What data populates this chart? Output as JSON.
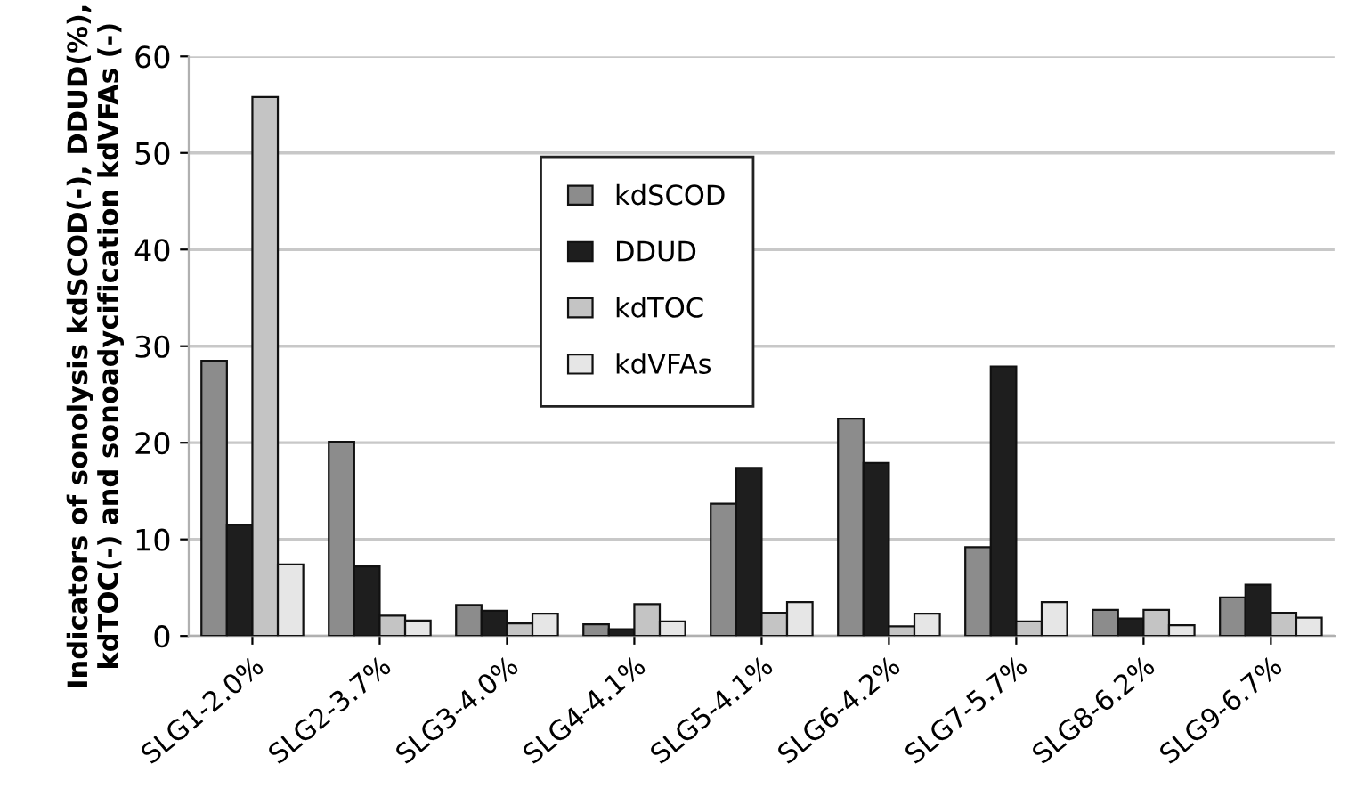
{
  "chart_data": {
    "type": "bar",
    "ylabel": "Indicators of sonolysis kdSCOD(-), DDUD(%),\nkdTOC(-) and sonoadycification kdVFAs (-)",
    "categories": [
      "SLG1-2.0%",
      "SLG2-3.7%",
      "SLG3-4.0%",
      "SLG4-4.1%",
      "SLG5-4.1%",
      "SLG6-4.2%",
      "SLG7-5.7%",
      "SLG8-6.2%",
      "SLG9-6.7%"
    ],
    "series": [
      {
        "name": "kdSCOD",
        "color": "#8c8c8c",
        "values": [
          28.5,
          20.1,
          3.2,
          1.2,
          13.7,
          22.5,
          9.2,
          2.7,
          4.0
        ]
      },
      {
        "name": "DDUD",
        "color": "#1e1e1e",
        "values": [
          11.5,
          7.2,
          2.6,
          0.7,
          17.4,
          17.9,
          27.9,
          1.8,
          5.3
        ]
      },
      {
        "name": "kdTOC",
        "color": "#c4c4c4",
        "values": [
          55.8,
          2.1,
          1.3,
          3.3,
          2.4,
          1.0,
          1.5,
          2.7,
          2.4
        ]
      },
      {
        "name": "kdVFAs",
        "color": "#e6e6e6",
        "values": [
          7.4,
          1.6,
          2.3,
          1.5,
          3.5,
          2.3,
          3.5,
          1.1,
          1.9
        ]
      }
    ],
    "ylim": [
      0,
      60
    ],
    "yticks": [
      0,
      10,
      20,
      30,
      40,
      50,
      60
    ],
    "grid": "y",
    "legend": "top"
  }
}
